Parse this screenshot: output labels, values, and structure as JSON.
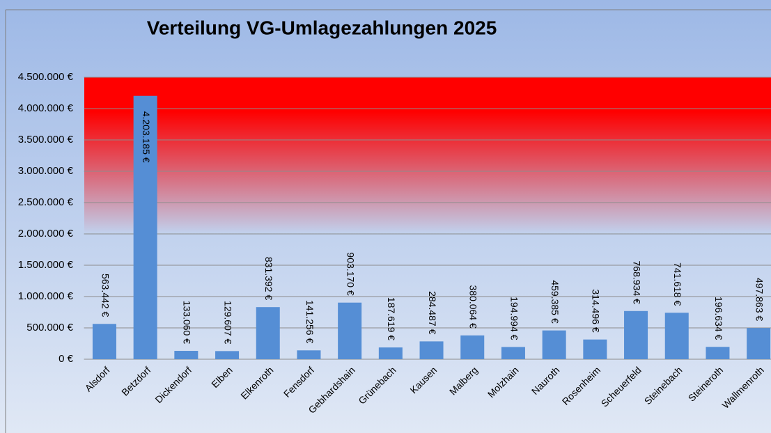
{
  "chart_data": {
    "type": "bar",
    "title": "Verteilung VG-Umlagezahlungen 2025",
    "categories": [
      "Alsdorf",
      "Betzdorf",
      "Dickendorf",
      "Elben",
      "Elkenroth",
      "Fensdorf",
      "Gebhardshain",
      "Grünebach",
      "Kausen",
      "Malberg",
      "Molzhain",
      "Nauroth",
      "Rosenheim",
      "Scheuerfeld",
      "Steinebach",
      "Steineroth",
      "Wallmenroth"
    ],
    "values": [
      563442,
      4203185,
      133060,
      129607,
      831392,
      141256,
      903170,
      187619,
      284487,
      380064,
      194994,
      459385,
      314496,
      768934,
      741618,
      196634,
      497863
    ],
    "value_labels": [
      "563.442 €",
      "4.203.185 €",
      "133.060 €",
      "129.607 €",
      "831.392 €",
      "141.256 €",
      "903.170 €",
      "187.619 €",
      "284.487 €",
      "380.064 €",
      "194.994 €",
      "459.385 €",
      "314.496 €",
      "768.934 €",
      "741.618 €",
      "196.634 €",
      "497.863 €"
    ],
    "color": "#558ed5",
    "ylim": [
      0,
      4500000
    ],
    "yticks": [
      {
        "value": 0,
        "label": "0 €"
      },
      {
        "value": 500000,
        "label": "500.000 €"
      },
      {
        "value": 1000000,
        "label": "1.000.000 €"
      },
      {
        "value": 1500000,
        "label": "1.500.000 €"
      },
      {
        "value": 2000000,
        "label": "2.000.000 €"
      },
      {
        "value": 2500000,
        "label": "2.500.000 €"
      },
      {
        "value": 3000000,
        "label": "3.000.000 €"
      },
      {
        "value": 3500000,
        "label": "3.500.000 €"
      },
      {
        "value": 4000000,
        "label": "4.000.000 €"
      },
      {
        "value": 4500000,
        "label": "4.500.000 €"
      }
    ],
    "grid": true
  }
}
